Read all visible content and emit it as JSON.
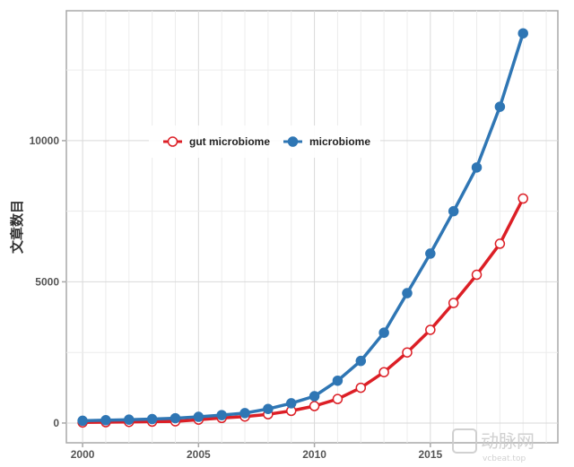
{
  "chart_data": {
    "type": "line",
    "title": "",
    "xlabel": "",
    "ylabel": "文章数目",
    "x": [
      2000,
      2001,
      2002,
      2003,
      2004,
      2005,
      2006,
      2007,
      2008,
      2009,
      2010,
      2011,
      2012,
      2013,
      2014,
      2015,
      2016,
      2017,
      2018,
      2019
    ],
    "xlim": [
      1999.3,
      2020.5
    ],
    "ylim": [
      -700,
      14600
    ],
    "x_ticks": [
      2000,
      2005,
      2010,
      2015
    ],
    "y_ticks": [
      0,
      5000,
      10000
    ],
    "x_tick_labels": [
      "2000",
      "2005",
      "2010",
      "2015"
    ],
    "y_tick_labels": [
      "0",
      "5000",
      "10000"
    ],
    "grid": true,
    "legend_position": "upper-left",
    "series": [
      {
        "name": "gut microbiome",
        "color": "#dc1f26",
        "marker": "open-circle",
        "values": [
          20,
          30,
          40,
          50,
          60,
          120,
          180,
          230,
          310,
          430,
          600,
          850,
          1250,
          1800,
          2500,
          3300,
          4250,
          5250,
          6350,
          7950
        ]
      },
      {
        "name": "microbiome",
        "color": "#2f76b4",
        "marker": "filled-circle",
        "values": [
          80,
          100,
          120,
          140,
          170,
          220,
          280,
          350,
          500,
          700,
          950,
          1500,
          2200,
          3200,
          4600,
          6000,
          7500,
          9050,
          11200,
          13800
        ]
      }
    ]
  },
  "watermark": {
    "brand": "动脉网",
    "site": "vcbeat.top"
  }
}
